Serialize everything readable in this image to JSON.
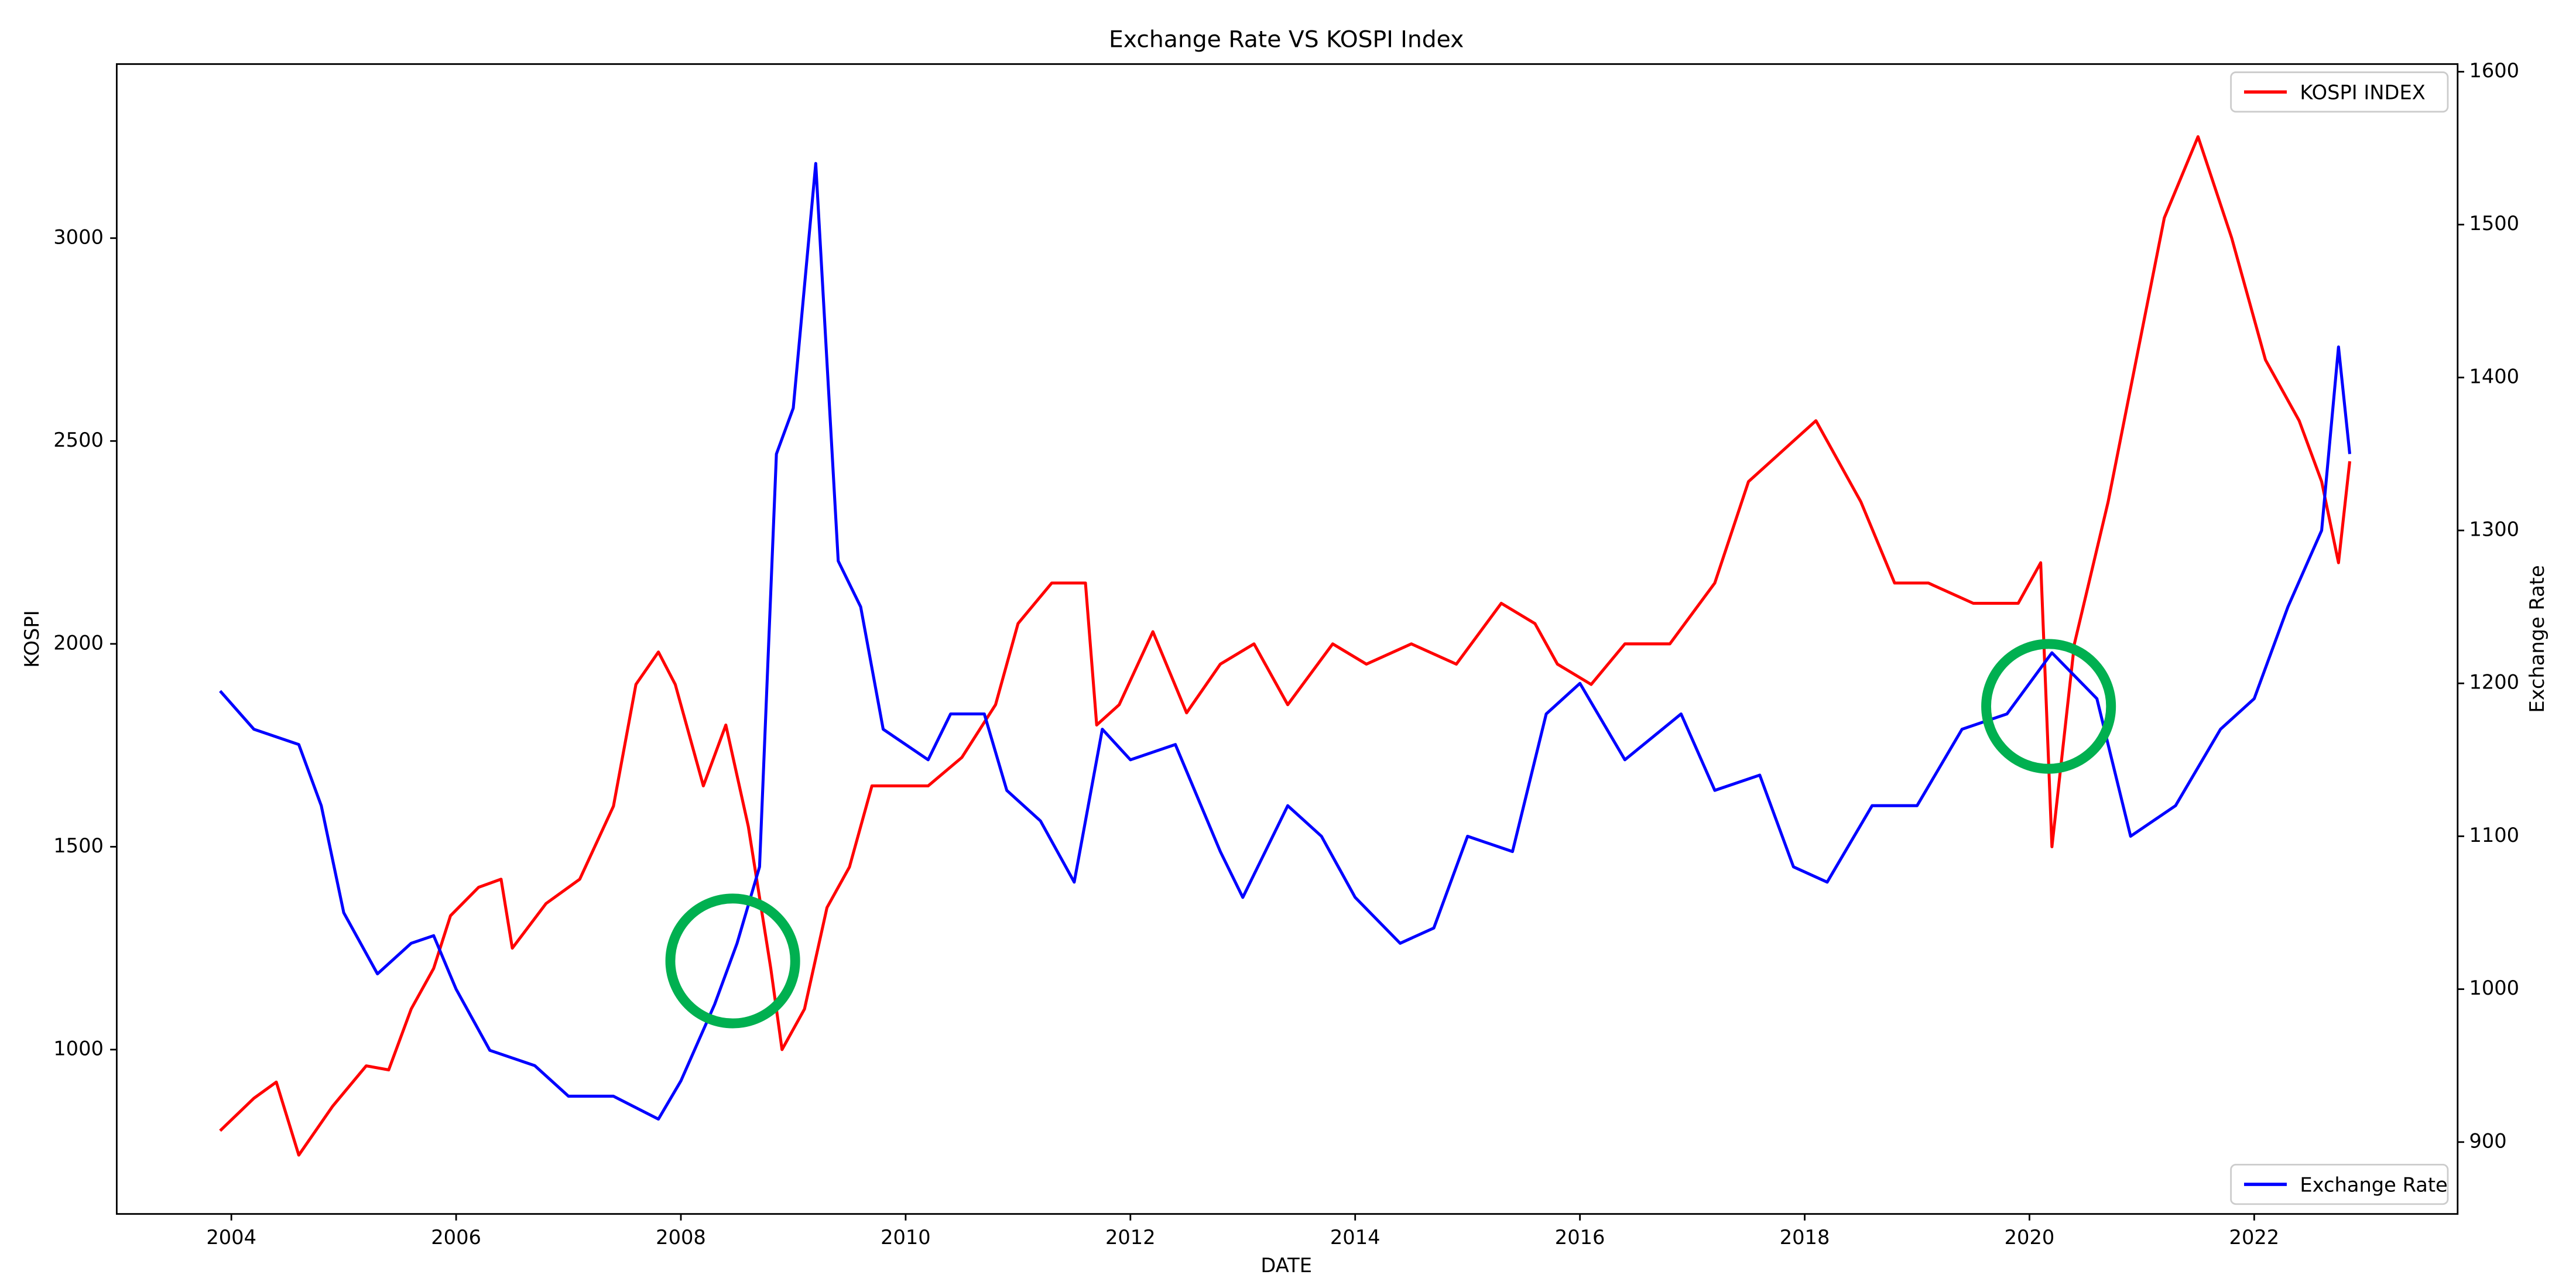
{
  "chart_data": {
    "type": "line",
    "title": "Exchange Rate VS KOSPI Index",
    "x_label": "DATE",
    "y_label": "KOSPI",
    "y2_label": "Exchange Rate",
    "xlim": [
      2002.98,
      2023.81
    ],
    "xticks": [
      2004,
      2006,
      2008,
      2010,
      2012,
      2014,
      2016,
      2018,
      2020,
      2022
    ],
    "ylim": [
      595,
      3429
    ],
    "yticks": [
      1000,
      1500,
      2000,
      2500,
      3000
    ],
    "y2lim": [
      853,
      1605
    ],
    "y2ticks": [
      900,
      1000,
      1100,
      1200,
      1300,
      1400,
      1500,
      1600
    ],
    "series": [
      {
        "name": "KOSPI INDEX",
        "color": "#ff0000",
        "legend": "upper right",
        "x": [
          2003.9,
          2004.2,
          2004.4,
          2004.6,
          2004.9,
          2005.2,
          2005.4,
          2005.6,
          2005.8,
          2005.95,
          2006.2,
          2006.4,
          2006.5,
          2006.8,
          2007.1,
          2007.4,
          2007.6,
          2007.8,
          2007.95,
          2008.2,
          2008.4,
          2008.6,
          2008.8,
          2008.9,
          2009.1,
          2009.3,
          2009.5,
          2009.7,
          2009.9,
          2010.2,
          2010.5,
          2010.8,
          2011.0,
          2011.3,
          2011.6,
          2011.7,
          2011.9,
          2012.2,
          2012.5,
          2012.8,
          2013.1,
          2013.4,
          2013.8,
          2014.1,
          2014.5,
          2014.9,
          2015.3,
          2015.6,
          2015.8,
          2016.1,
          2016.4,
          2016.8,
          2017.2,
          2017.5,
          2017.9,
          2018.1,
          2018.5,
          2018.8,
          2019.1,
          2019.5,
          2019.9,
          2020.1,
          2020.2,
          2020.4,
          2020.7,
          2020.95,
          2021.2,
          2021.5,
          2021.8,
          2022.1,
          2022.4,
          2022.6,
          2022.75,
          2022.85
        ],
        "values": [
          800,
          880,
          920,
          740,
          860,
          960,
          950,
          1100,
          1200,
          1330,
          1400,
          1420,
          1250,
          1360,
          1420,
          1600,
          1900,
          1980,
          1900,
          1650,
          1800,
          1550,
          1200,
          1000,
          1100,
          1350,
          1450,
          1650,
          1650,
          1650,
          1720,
          1850,
          2050,
          2150,
          2150,
          1800,
          1850,
          2030,
          1830,
          1950,
          2000,
          1850,
          2000,
          1950,
          2000,
          1950,
          2100,
          2050,
          1950,
          1900,
          2000,
          2000,
          2150,
          2400,
          2500,
          2550,
          2350,
          2150,
          2150,
          2100,
          2100,
          2200,
          1500,
          2000,
          2350,
          2700,
          3050,
          3250,
          3000,
          2700,
          2550,
          2400,
          2200,
          2450
        ]
      },
      {
        "name": "Exchange Rate",
        "color": "#0000ff",
        "axis": "y2",
        "legend": "lower right",
        "x": [
          2003.9,
          2004.2,
          2004.6,
          2004.8,
          2005.0,
          2005.3,
          2005.6,
          2005.8,
          2006.0,
          2006.3,
          2006.7,
          2007.0,
          2007.4,
          2007.8,
          2008.0,
          2008.3,
          2008.5,
          2008.7,
          2008.85,
          2009.0,
          2009.2,
          2009.4,
          2009.6,
          2009.8,
          2010.2,
          2010.4,
          2010.7,
          2010.9,
          2011.2,
          2011.5,
          2011.75,
          2012.0,
          2012.4,
          2012.8,
          2013.0,
          2013.4,
          2013.7,
          2014.0,
          2014.4,
          2014.7,
          2015.0,
          2015.4,
          2015.7,
          2016.0,
          2016.4,
          2016.9,
          2017.2,
          2017.6,
          2017.9,
          2018.2,
          2018.6,
          2019.0,
          2019.4,
          2019.8,
          2020.2,
          2020.6,
          2020.9,
          2021.3,
          2021.7,
          2022.0,
          2022.3,
          2022.6,
          2022.75,
          2022.85
        ],
        "values": [
          1195,
          1170,
          1160,
          1120,
          1050,
          1010,
          1030,
          1035,
          1000,
          960,
          950,
          930,
          930,
          915,
          940,
          990,
          1030,
          1080,
          1350,
          1380,
          1540,
          1280,
          1250,
          1170,
          1150,
          1180,
          1180,
          1130,
          1110,
          1070,
          1170,
          1150,
          1160,
          1090,
          1060,
          1120,
          1100,
          1060,
          1030,
          1040,
          1100,
          1090,
          1180,
          1200,
          1150,
          1180,
          1130,
          1140,
          1080,
          1070,
          1120,
          1120,
          1170,
          1180,
          1220,
          1190,
          1100,
          1120,
          1170,
          1190,
          1250,
          1300,
          1420,
          1350
        ]
      }
    ]
  }
}
